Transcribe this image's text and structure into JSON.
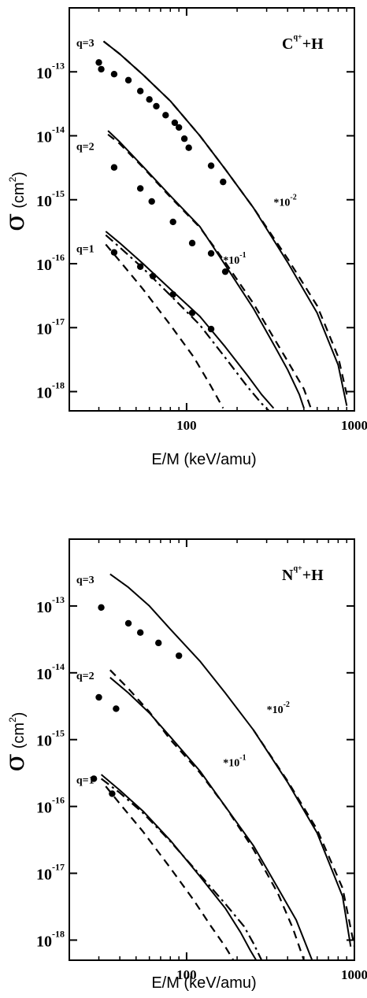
{
  "chart_data": [
    {
      "type": "line",
      "title": "C^{q+}+H",
      "title_parts": {
        "base": "C",
        "sup": "q+",
        "rest": "+H"
      },
      "xlabel": "E/M (keV/amu)",
      "ylabel_parts": {
        "sigma": "σ",
        "unit_open": "(cm",
        "unit_sup": "2",
        "unit_close": ")"
      },
      "x_scale": "log",
      "y_scale": "log",
      "xlim": [
        20,
        1000
      ],
      "ylim": [
        5e-19,
        1e-12
      ],
      "x_ticks": [
        {
          "value": 100,
          "label": "100"
        },
        {
          "value": 1000,
          "label": "1000"
        }
      ],
      "y_ticks": [
        {
          "value": 1e-13,
          "base": "10",
          "exp": "-13"
        },
        {
          "value": 1e-14,
          "base": "10",
          "exp": "-14"
        },
        {
          "value": 1e-15,
          "base": "10",
          "exp": "-15"
        },
        {
          "value": 1e-16,
          "base": "10",
          "exp": "-16"
        },
        {
          "value": 1e-17,
          "base": "10",
          "exp": "-17"
        },
        {
          "value": 1e-18,
          "base": "10",
          "exp": "-18"
        }
      ],
      "annotations": [
        {
          "text": "q=3",
          "at": [
            22,
            2.5e-13
          ]
        },
        {
          "text": "q=2",
          "at": [
            22,
            6e-15
          ]
        },
        {
          "text": "q=1",
          "at": [
            22,
            1.5e-16
          ]
        },
        {
          "text": "*10",
          "sup": "-2",
          "at": [
            330,
            8e-16
          ]
        },
        {
          "text": "*10",
          "sup": "-1",
          "at": [
            165,
            1e-16
          ]
        }
      ],
      "series": [
        {
          "group": "q=3",
          "style": "solid",
          "x": [
            32,
            40,
            55,
            80,
            120,
            170,
            250,
            400,
            600,
            800,
            900
          ],
          "y": [
            3e-13,
            1.9e-13,
            9e-14,
            3.5e-14,
            1e-14,
            3e-15,
            7.5e-16,
            1.05e-16,
            1.7e-17,
            2.6e-18,
            6e-19
          ]
        },
        {
          "group": "q=3",
          "style": "dashed",
          "x": [
            32,
            40,
            55,
            80,
            120,
            170,
            250,
            400,
            600,
            800,
            900
          ],
          "y": [
            3e-13,
            1.9e-13,
            9e-14,
            3.5e-14,
            1e-14,
            3e-15,
            7.5e-16,
            1.2e-16,
            2.2e-17,
            3.5e-18,
            9e-19
          ]
        },
        {
          "group": "q=3",
          "style": "markers",
          "x": [
            30,
            31,
            37,
            45,
            53,
            60,
            66,
            75,
            85,
            90,
            97,
            103,
            140,
            165
          ],
          "y": [
            1.4e-13,
            1.1e-13,
            9.2e-14,
            7.4e-14,
            5e-14,
            3.7e-14,
            2.9e-14,
            2.1e-14,
            1.6e-14,
            1.35e-14,
            9e-15,
            6.5e-15,
            3.4e-15,
            1.9e-15
          ]
        },
        {
          "group": "q=2",
          "style": "solid",
          "x": [
            34,
            40,
            55,
            80,
            120,
            170,
            250,
            330,
            400,
            470,
            500
          ],
          "y": [
            1.2e-14,
            8e-15,
            3.3e-15,
            1.15e-15,
            3.8e-16,
            9.5e-17,
            2e-17,
            5.5e-18,
            2.2e-18,
            9e-19,
            5.5e-19
          ]
        },
        {
          "group": "q=2",
          "style": "dashed",
          "x": [
            34,
            40,
            55,
            80,
            120,
            170,
            250,
            330,
            400,
            500,
            550
          ],
          "y": [
            1.05e-14,
            7.5e-15,
            3.2e-15,
            1.1e-15,
            3.7e-16,
            1.05e-16,
            2.4e-17,
            7e-18,
            3e-18,
            1.1e-18,
            5.5e-19
          ]
        },
        {
          "group": "q=2",
          "style": "markers",
          "x": [
            37,
            53,
            62,
            83,
            108,
            140,
            170
          ],
          "y": [
            3.2e-15,
            1.5e-15,
            9.4e-16,
            4.5e-16,
            2.1e-16,
            1.45e-16,
            7.5e-17
          ]
        },
        {
          "group": "q=1",
          "style": "solid",
          "x": [
            33,
            40,
            55,
            80,
            120,
            170,
            230,
            280,
            330
          ],
          "y": [
            3.2e-16,
            2.1e-16,
            1e-16,
            4e-17,
            1.5e-17,
            5e-18,
            1.8e-18,
            9e-19,
            5.5e-19
          ]
        },
        {
          "group": "q=1",
          "style": "dashdot",
          "x": [
            33,
            40,
            55,
            80,
            120,
            170,
            230,
            280,
            310
          ],
          "y": [
            2.8e-16,
            1.8e-16,
            8.5e-17,
            3.2e-17,
            1.1e-17,
            3.4e-18,
            1.2e-18,
            6.5e-19,
            5e-19
          ]
        },
        {
          "group": "q=1",
          "style": "dashed",
          "x": [
            33,
            40,
            55,
            80,
            110,
            140,
            165
          ],
          "y": [
            2e-16,
            1.1e-16,
            4e-17,
            1.1e-17,
            3.5e-18,
            1.2e-18,
            5.5e-19
          ]
        },
        {
          "group": "q=1",
          "style": "markers",
          "x": [
            37,
            53,
            63,
            83,
            108,
            140
          ],
          "y": [
            1.5e-16,
            9e-17,
            6.4e-17,
            3.3e-17,
            1.7e-17,
            9.5e-18
          ]
        }
      ]
    },
    {
      "type": "line",
      "title": "N^{q+}+H",
      "title_parts": {
        "base": "N",
        "sup": "q+",
        "rest": "+H"
      },
      "xlabel": "E/M (keV/amu)",
      "ylabel_parts": {
        "sigma": "σ",
        "unit_open": "(cm",
        "unit_sup": "2",
        "unit_close": ")"
      },
      "x_scale": "log",
      "y_scale": "log",
      "xlim": [
        20,
        1000
      ],
      "ylim": [
        5e-19,
        1e-12
      ],
      "x_ticks": [
        {
          "value": 100,
          "label": "100"
        },
        {
          "value": 1000,
          "label": "1000"
        }
      ],
      "y_ticks": [
        {
          "value": 1e-13,
          "base": "10",
          "exp": "-13"
        },
        {
          "value": 1e-14,
          "base": "10",
          "exp": "-14"
        },
        {
          "value": 1e-15,
          "base": "10",
          "exp": "-15"
        },
        {
          "value": 1e-16,
          "base": "10",
          "exp": "-16"
        },
        {
          "value": 1e-17,
          "base": "10",
          "exp": "-17"
        },
        {
          "value": 1e-18,
          "base": "10",
          "exp": "-18"
        }
      ],
      "annotations": [
        {
          "text": "q=3",
          "at": [
            22,
            2.2e-13
          ]
        },
        {
          "text": "q=2",
          "at": [
            22,
            8e-15
          ]
        },
        {
          "text": "q=1",
          "at": [
            22,
            2.2e-16
          ]
        },
        {
          "text": "*10",
          "sup": "-2",
          "at": [
            300,
            2.5e-15
          ]
        },
        {
          "text": "*10",
          "sup": "-1",
          "at": [
            165,
            4e-16
          ]
        }
      ],
      "series": [
        {
          "group": "q=3",
          "style": "solid",
          "x": [
            35,
            45,
            60,
            80,
            120,
            170,
            250,
            400,
            600,
            850,
            950
          ],
          "y": [
            3e-13,
            1.9e-13,
            1e-13,
            4.5e-14,
            1.5e-14,
            5e-15,
            1.4e-15,
            2.3e-16,
            4e-17,
            4.5e-18,
            8e-19
          ]
        },
        {
          "group": "q=3",
          "style": "dashed",
          "x": [
            250,
            400,
            600,
            850,
            1000
          ],
          "y": [
            1.4e-15,
            2.4e-16,
            4.5e-17,
            6e-18,
            8e-19
          ]
        },
        {
          "group": "q=3",
          "style": "markers",
          "x": [
            31,
            45,
            53,
            68,
            90
          ],
          "y": [
            9.5e-14,
            5.5e-14,
            4e-14,
            2.8e-14,
            1.8e-14
          ]
        },
        {
          "group": "q=2",
          "style": "solid",
          "x": [
            35,
            45,
            60,
            80,
            120,
            170,
            250,
            350,
            450,
            520,
            560
          ],
          "y": [
            8.5e-15,
            5e-15,
            2.5e-15,
            1.1e-15,
            3.4e-16,
            1e-16,
            2.6e-17,
            6e-18,
            2e-18,
            8e-19,
            5e-19
          ]
        },
        {
          "group": "q=2",
          "style": "dashed",
          "x": [
            35,
            45,
            60,
            80,
            120,
            170,
            250,
            350,
            430,
            500
          ],
          "y": [
            1.1e-14,
            5.8e-15,
            2.6e-15,
            1e-15,
            3.2e-16,
            1e-16,
            2.3e-17,
            5e-18,
            1.5e-18,
            5e-19
          ]
        },
        {
          "group": "q=2",
          "style": "markers",
          "x": [
            30,
            38
          ],
          "y": [
            4.3e-15,
            2.9e-15
          ]
        },
        {
          "group": "q=1",
          "style": "solid",
          "x": [
            31,
            40,
            55,
            80,
            120,
            170,
            210,
            240,
            260
          ],
          "y": [
            3e-16,
            1.75e-16,
            8.5e-17,
            3.1e-17,
            9e-18,
            3e-18,
            1.3e-18,
            7e-19,
            5e-19
          ]
        },
        {
          "group": "q=1",
          "style": "dashdot",
          "x": [
            31,
            40,
            55,
            80,
            120,
            170,
            220,
            250,
            280
          ],
          "y": [
            2.6e-16,
            1.6e-16,
            8e-17,
            3e-17,
            9.5e-18,
            3.5e-18,
            1.6e-18,
            9e-19,
            5e-19
          ]
        },
        {
          "group": "q=1",
          "style": "dashed",
          "x": [
            33,
            40,
            55,
            80,
            110,
            140,
            170,
            190
          ],
          "y": [
            2e-16,
            1.1e-16,
            4.2e-17,
            1.2e-17,
            4e-18,
            1.6e-18,
            8e-19,
            5e-19
          ]
        },
        {
          "group": "q=1",
          "style": "markers",
          "x": [
            28,
            36
          ],
          "y": [
            2.6e-16,
            1.55e-16
          ]
        }
      ]
    }
  ]
}
